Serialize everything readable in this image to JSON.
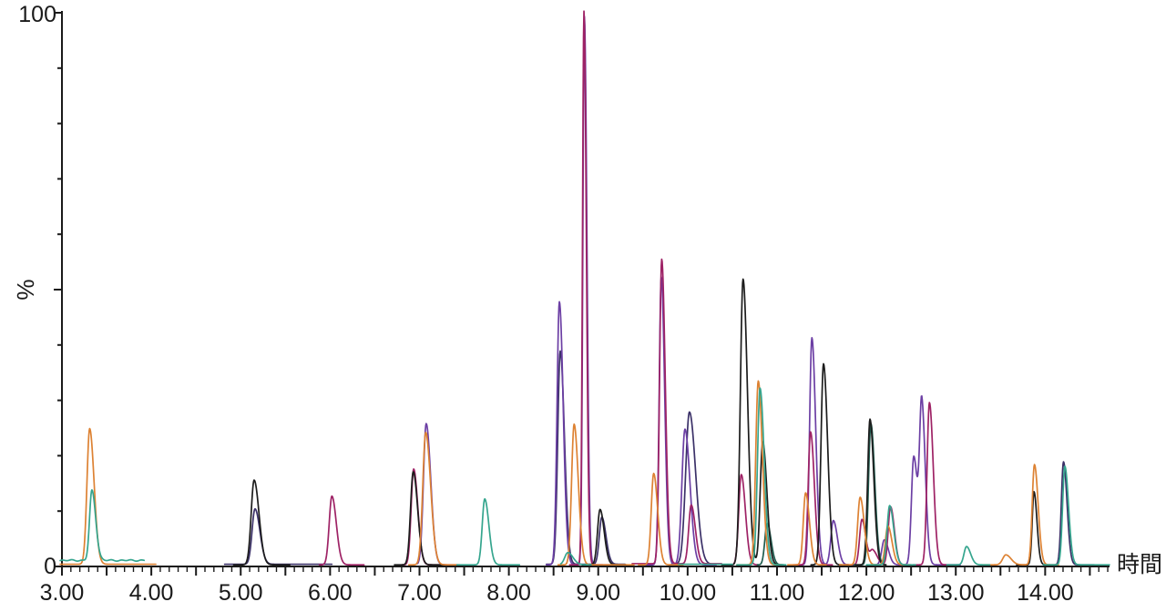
{
  "figure": {
    "y_top_label": "100",
    "y_bottom_label": "0"
  },
  "chart_data": {
    "type": "line",
    "chart_kind": "chromatogram-overlay",
    "title": "",
    "xlabel": "時間",
    "ylabel": "%",
    "xlim": [
      3.0,
      14.72
    ],
    "ylim": [
      0,
      100
    ],
    "grid": false,
    "legend": "none",
    "y_tick_step": 10,
    "x_minor_step": 0.1,
    "tailing": 1.65,
    "x_ticks": [
      {
        "t": 3,
        "label": "3.00"
      },
      {
        "t": 4,
        "label": "4.00"
      },
      {
        "t": 5,
        "label": "5.00"
      },
      {
        "t": 6,
        "label": "6.00"
      },
      {
        "t": 7,
        "label": "7.00"
      },
      {
        "t": 8,
        "label": "8.00"
      },
      {
        "t": 9,
        "label": "9.00"
      },
      {
        "t": 10,
        "label": "10.00"
      },
      {
        "t": 11,
        "label": "11.00"
      },
      {
        "t": 12,
        "label": "12.00"
      },
      {
        "t": 13,
        "label": "13.00"
      },
      {
        "t": 14,
        "label": "14.00"
      }
    ],
    "axis_color": "#1a1a1a",
    "series": [
      {
        "name": "navy-trace",
        "color": "#3B3168",
        "segments": [
          {
            "range": [
              4.82,
              6.02
            ],
            "base": 0.4,
            "noise": 0,
            "peaks": [
              [
                5.16,
                10,
                0.033
              ]
            ]
          },
          {
            "range": [
              8.42,
              9.3
            ],
            "base": 0.4,
            "noise": 0,
            "peaks": [
              [
                8.575,
                38.5,
                0.028
              ],
              [
                9.04,
                8.5,
                0.028
              ]
            ]
          },
          {
            "range": [
              9.82,
              10.35
            ],
            "base": 0.4,
            "noise": 0,
            "peaks": [
              [
                10.02,
                27.5,
                0.042
              ]
            ]
          },
          {
            "range": [
              14.05,
              14.55
            ],
            "base": 0.3,
            "noise": 0,
            "peaks": [
              [
                14.205,
                18.6,
                0.024
              ]
            ]
          }
        ]
      },
      {
        "name": "violet-trace",
        "color": "#6C3FA4",
        "segments": [
          {
            "range": [
              6.98,
              7.42
            ],
            "base": 0.3,
            "noise": 0,
            "peaks": [
              [
                7.075,
                25.5,
                0.031
              ]
            ]
          },
          {
            "range": [
              8.42,
              9.22
            ],
            "base": 0.3,
            "noise": 0,
            "peaks": [
              [
                8.565,
                47.5,
                0.026
              ],
              [
                8.845,
                99,
                0.017
              ]
            ]
          },
          {
            "range": [
              9.5,
              10.32
            ],
            "base": 0.3,
            "noise": 0,
            "peaks": [
              [
                9.705,
                52,
                0.023
              ],
              [
                9.97,
                24.5,
                0.034
              ]
            ]
          },
          {
            "range": [
              11.2,
              11.8
            ],
            "base": 0.3,
            "noise": 0,
            "peaks": [
              [
                11.39,
                41,
                0.026
              ],
              [
                11.63,
                8,
                0.028
              ]
            ]
          },
          {
            "range": [
              12.05,
              13.05
            ],
            "base": 0.3,
            "noise": 0,
            "peaks": [
              [
                12.2,
                4.5,
                0.028
              ],
              [
                12.53,
                19.6,
                0.026
              ],
              [
                12.62,
                28.3,
                0.024
              ]
            ]
          }
        ]
      },
      {
        "name": "crimson-trace",
        "color": "#9E2265",
        "segments": [
          {
            "range": [
              5.88,
              6.38
            ],
            "base": 0.3,
            "noise": 0,
            "peaks": [
              [
                6.02,
                12.4,
                0.03
              ]
            ]
          },
          {
            "range": [
              6.8,
              7.22
            ],
            "base": 0.3,
            "noise": 0,
            "peaks": [
              [
                6.935,
                17.3,
                0.028
              ]
            ]
          },
          {
            "range": [
              8.68,
              9.05
            ],
            "base": 0.3,
            "noise": 0,
            "peaks": [
              [
                8.84,
                100,
                0.016
              ]
            ]
          },
          {
            "range": [
              9.38,
              10.38
            ],
            "base": 0.5,
            "noise": 0,
            "peaks": [
              [
                9.71,
                55,
                0.024
              ],
              [
                10.04,
                10.6,
                0.028
              ]
            ]
          },
          {
            "range": [
              10.42,
              10.78
            ],
            "base": 0.3,
            "noise": 0,
            "peaks": [
              [
                10.6,
                16.3,
                0.028
              ]
            ]
          },
          {
            "range": [
              11.18,
              11.62
            ],
            "base": 0.3,
            "noise": 0,
            "peaks": [
              [
                11.375,
                24,
                0.026
              ]
            ]
          },
          {
            "range": [
              11.78,
              12.5
            ],
            "base": 0.3,
            "noise": 0,
            "peaks": [
              [
                11.95,
                8.2,
                0.026
              ],
              [
                12.07,
                2.6,
                0.03
              ],
              [
                12.27,
                10.5,
                0.026
              ]
            ]
          },
          {
            "range": [
              12.52,
              13.02
            ],
            "base": 0.3,
            "noise": 0,
            "peaks": [
              [
                12.705,
                29.3,
                0.026
              ]
            ]
          }
        ]
      },
      {
        "name": "darkgreen-trace",
        "color": "#1F5C4F",
        "segments": [
          {
            "range": [
              10.78,
              11.06
            ],
            "base": 0.3,
            "noise": 0,
            "peaks": [
              [
                10.89,
                7.5,
                0.026
              ]
            ]
          },
          {
            "range": [
              11.86,
              12.2
            ],
            "base": 0.3,
            "noise": 0,
            "peaks": [
              [
                12.05,
                25.5,
                0.026
              ]
            ]
          }
        ]
      },
      {
        "name": "black-trace",
        "color": "#1C1C1C",
        "segments": [
          {
            "range": [
              4.92,
              5.55
            ],
            "base": 0.3,
            "noise": 0,
            "peaks": [
              [
                5.15,
                15.3,
                0.033
              ]
            ]
          },
          {
            "range": [
              6.72,
              7.28
            ],
            "base": 0.3,
            "noise": 0,
            "peaks": [
              [
                6.93,
                16.8,
                0.03
              ]
            ]
          },
          {
            "range": [
              8.82,
              9.32
            ],
            "base": 0.3,
            "noise": 0,
            "peaks": [
              [
                9.02,
                10,
                0.028
              ]
            ]
          },
          {
            "range": [
              10.38,
              11.08
            ],
            "base": 0.3,
            "noise": 0,
            "peaks": [
              [
                10.62,
                51.6,
                0.03
              ],
              [
                10.84,
                22.2,
                0.028
              ]
            ]
          },
          {
            "range": [
              11.38,
              11.8
            ],
            "base": 0.3,
            "noise": 0,
            "peaks": [
              [
                11.52,
                36.3,
                0.028
              ]
            ]
          },
          {
            "range": [
              11.88,
              12.22
            ],
            "base": 0.3,
            "noise": 0,
            "peaks": [
              [
                12.04,
                26.3,
                0.026
              ]
            ]
          },
          {
            "range": [
              13.68,
              14.05
            ],
            "base": 0.3,
            "noise": 0,
            "peaks": [
              [
                13.875,
                13.2,
                0.02
              ]
            ]
          }
        ]
      },
      {
        "name": "orange-trace",
        "color": "#DD8233",
        "segments": [
          {
            "range": [
              2.98,
              4.05
            ],
            "base": 0.4,
            "noise": 0,
            "peaks": [
              [
                3.31,
                24.5,
                0.03
              ]
            ]
          },
          {
            "range": [
              6.88,
              7.45
            ],
            "base": 0.3,
            "noise": 0,
            "peaks": [
              [
                7.07,
                23.9,
                0.033
              ]
            ]
          },
          {
            "range": [
              8.55,
              9.4
            ],
            "base": 0.3,
            "noise": 0,
            "peaks": [
              [
                8.73,
                25.4,
                0.028
              ]
            ]
          },
          {
            "range": [
              9.45,
              9.95
            ],
            "base": 0.3,
            "noise": 0,
            "peaks": [
              [
                9.62,
                16.5,
                0.027
              ]
            ]
          },
          {
            "range": [
              10.55,
              11.05
            ],
            "base": 0.3,
            "noise": 0,
            "peaks": [
              [
                10.79,
                33.2,
                0.028
              ]
            ]
          },
          {
            "range": [
              11.12,
              11.55
            ],
            "base": 0.3,
            "noise": 0,
            "peaks": [
              [
                11.32,
                13,
                0.026
              ]
            ]
          },
          {
            "range": [
              11.7,
              12.5
            ],
            "base": 0.3,
            "noise": 0,
            "peaks": [
              [
                11.93,
                12.2,
                0.028
              ],
              [
                12.24,
                7,
                0.028
              ]
            ]
          },
          {
            "range": [
              13.3,
              14.15
            ],
            "base": 0.3,
            "noise": 0,
            "peaks": [
              [
                13.56,
                1.8,
                0.035
              ],
              [
                13.88,
                18.1,
                0.025
              ]
            ]
          }
        ]
      },
      {
        "name": "teal-trace",
        "color": "#35A58E",
        "segments": [
          {
            "range": [
              2.98,
              3.92
            ],
            "base": 1.1,
            "noise": 0.18,
            "peaks": [
              [
                3.335,
                12.6,
                0.026
              ]
            ]
          },
          {
            "range": [
              7.42,
              8.12
            ],
            "base": 0.3,
            "noise": 0,
            "peaks": [
              [
                7.73,
                11.9,
                0.028
              ]
            ]
          },
          {
            "range": [
              8.58,
              8.92
            ],
            "base": 0.3,
            "noise": 0,
            "peaks": [
              [
                8.66,
                2.2,
                0.035
              ]
            ]
          },
          {
            "range": [
              9.9,
              10.5
            ],
            "base": 0.4,
            "noise": 0,
            "peaks": []
          },
          {
            "range": [
              10.55,
              11.1
            ],
            "base": 0.3,
            "noise": 0,
            "peaks": [
              [
                10.81,
                31.9,
                0.028
              ]
            ]
          },
          {
            "range": [
              12.0,
              12.55
            ],
            "base": 0.3,
            "noise": 0,
            "peaks": [
              [
                12.26,
                10.7,
                0.028
              ]
            ]
          },
          {
            "range": [
              12.9,
              13.38
            ],
            "base": 0.3,
            "noise": 0,
            "peaks": [
              [
                13.12,
                3.3,
                0.028
              ]
            ]
          },
          {
            "range": [
              13.98,
              14.72
            ],
            "base": 0.3,
            "noise": 0,
            "peaks": [
              [
                14.22,
                17.8,
                0.025
              ]
            ]
          }
        ]
      }
    ]
  }
}
